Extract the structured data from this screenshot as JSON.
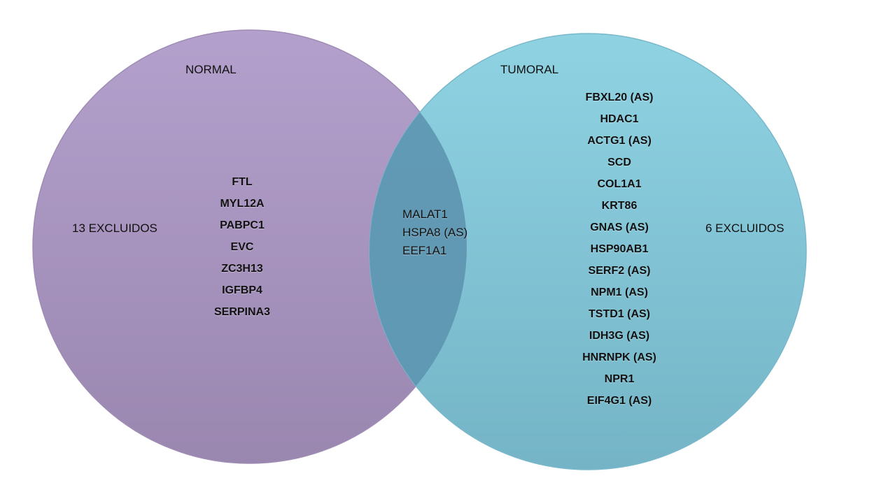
{
  "sets": {
    "normal": {
      "title": "NORMAL",
      "excluded_label": "13 EXCLUIDOS",
      "genes": [
        "FTL",
        "MYL12A",
        "PABPC1",
        "EVC",
        "ZC3H13",
        "IGFBP4",
        "SERPINA3"
      ],
      "color": "#a690be"
    },
    "tumoral": {
      "title": "TUMORAL",
      "excluded_label": "6 EXCLUIDOS",
      "genes": [
        "FBXL20 (AS)",
        "HDAC1",
        "ACTG1 (AS)",
        "SCD",
        "COL1A1",
        "KRT86",
        "GNAS (AS)",
        "HSP90AB1",
        "SERF2 (AS)",
        "NPM1 (AS)",
        "TSTD1 (AS)",
        "IDH3G (AS)",
        "HNRNPK (AS)",
        "NPR1",
        "EIF4G1 (AS)"
      ],
      "color": "#7cc4d6"
    },
    "shared": {
      "genes": [
        "MALAT1",
        "HSPA8 (AS)",
        "EEF1A1"
      ],
      "color": "#5e98b4"
    }
  }
}
